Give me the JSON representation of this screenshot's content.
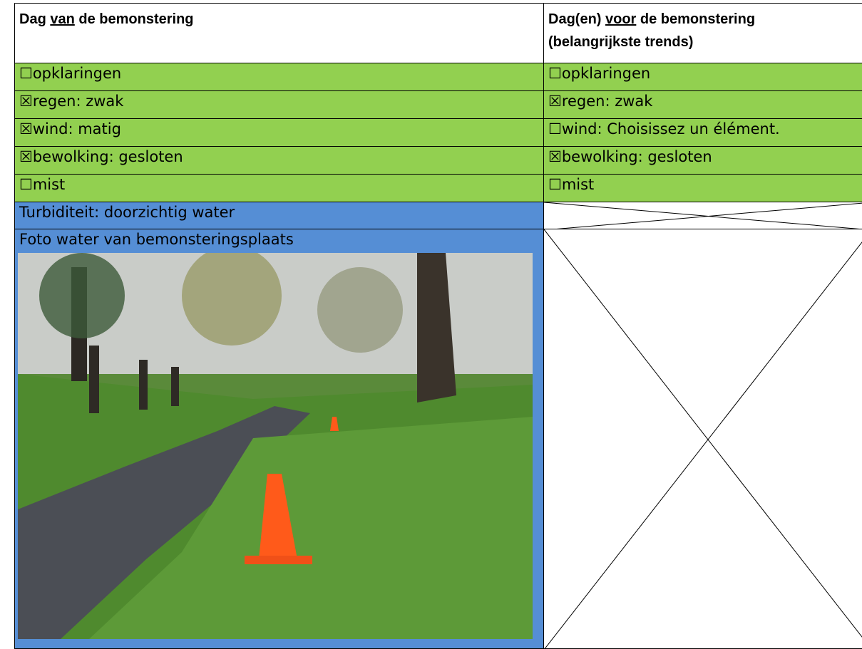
{
  "table": {
    "header": {
      "left": [
        "Dag ",
        "van",
        " de bemonstering"
      ],
      "right": [
        "Dag(en) ",
        "voor",
        " de bemonstering",
        "(belangrijkste trends)"
      ]
    },
    "rows": [
      {
        "left": [
          "☐",
          "opklaringen"
        ],
        "right": [
          "☐",
          "opklaringen"
        ]
      },
      {
        "left": [
          "☒",
          "regen: zwak"
        ],
        "right": [
          "☒",
          "regen: zwak"
        ]
      },
      {
        "left": [
          "☒",
          "wind: matig"
        ],
        "right": [
          "☐",
          "wind: Choisissez un élément."
        ]
      },
      {
        "left": [
          "☒",
          "bewolking: gesloten"
        ],
        "right": [
          "☒",
          "bewolking: gesloten"
        ]
      },
      {
        "left": [
          "☐",
          "mist"
        ],
        "right": [
          "☐",
          "mist"
        ]
      }
    ],
    "turbidity": "Turbiditeit: doorzichtig water",
    "photo_label": "Foto water van bemonsteringsplaats"
  }
}
